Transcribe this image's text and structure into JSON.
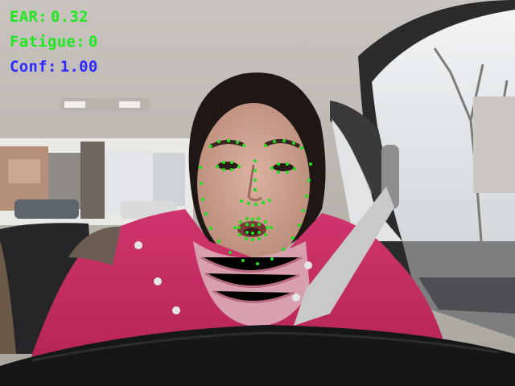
{
  "overlay": {
    "ear": {
      "label": "EAR:",
      "value": "0.32",
      "color": "#22e622"
    },
    "fatigue": {
      "label": "Fatigue:",
      "value": "0",
      "color": "#22e622"
    },
    "confidence": {
      "label": "Conf:",
      "value": "1.00",
      "color": "#2a2aff"
    }
  },
  "landmark_color": "#1fe01f"
}
